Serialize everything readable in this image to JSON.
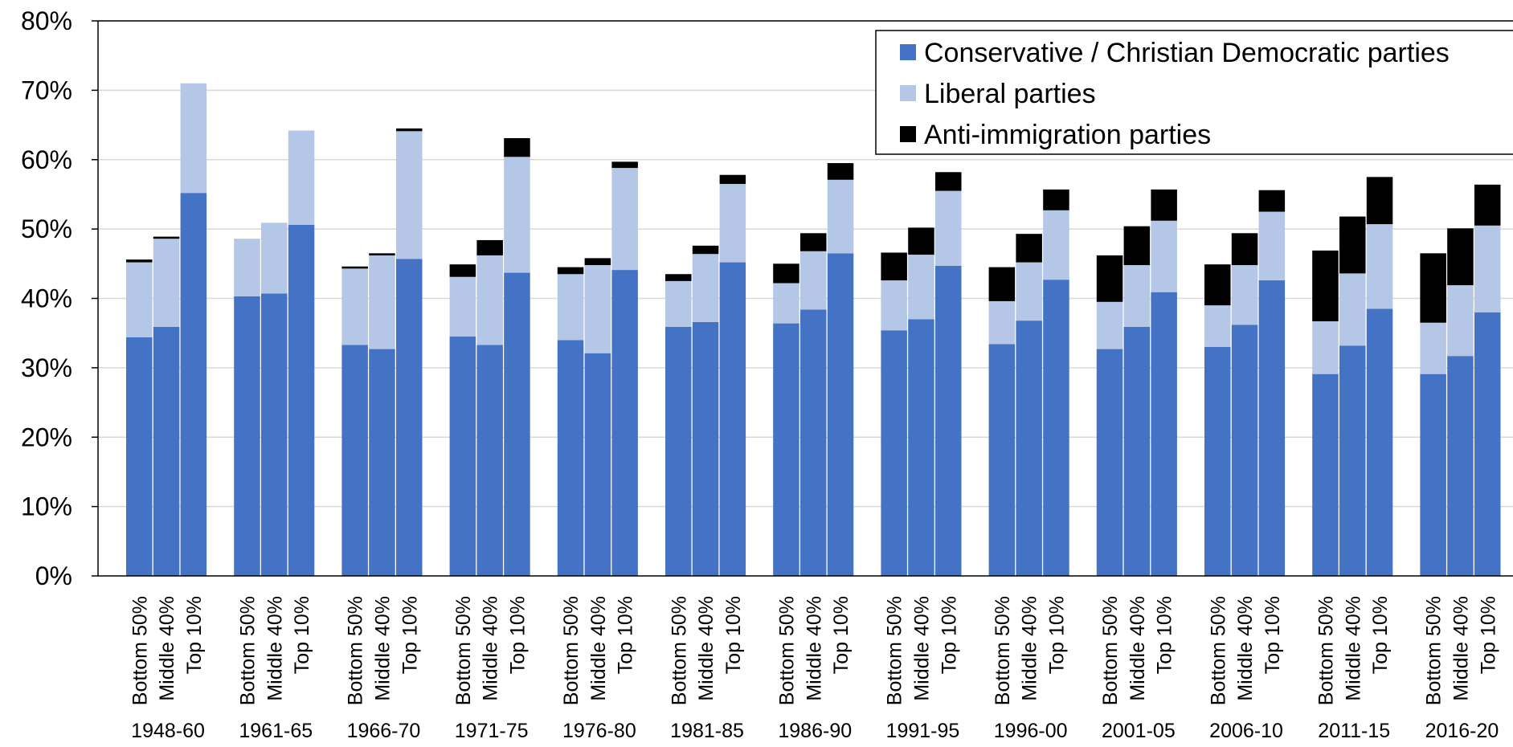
{
  "chart_data": {
    "type": "bar",
    "stacked": true,
    "grid": true,
    "legend_position": "top-right",
    "ylim": [
      0,
      80
    ],
    "yticks": [
      "0%",
      "10%",
      "20%",
      "30%",
      "40%",
      "50%",
      "60%",
      "70%",
      "80%"
    ],
    "periods": [
      "1948-60",
      "1961-65",
      "1966-70",
      "1971-75",
      "1976-80",
      "1981-85",
      "1986-90",
      "1991-95",
      "1996-00",
      "2001-05",
      "2006-10",
      "2011-15",
      "2016-20"
    ],
    "groups": [
      "Bottom 50%",
      "Middle 40%",
      "Top 10%"
    ],
    "series": [
      {
        "name": "Conservative / Christian Democratic parties",
        "color": "#4472c4",
        "values": [
          [
            34.4,
            35.9,
            55.2
          ],
          [
            40.3,
            40.7,
            50.6
          ],
          [
            33.3,
            32.7,
            45.7
          ],
          [
            34.5,
            33.3,
            43.7
          ],
          [
            34.0,
            32.1,
            44.1
          ],
          [
            35.9,
            36.6,
            45.2
          ],
          [
            36.4,
            38.4,
            46.5
          ],
          [
            35.4,
            37.0,
            44.7
          ],
          [
            33.4,
            36.8,
            42.7
          ],
          [
            32.7,
            35.9,
            40.9
          ],
          [
            33.0,
            36.2,
            42.6
          ],
          [
            29.1,
            33.2,
            38.5
          ],
          [
            29.1,
            31.7,
            38.0
          ]
        ]
      },
      {
        "name": "Liberal parties",
        "color": "#b4c7e7",
        "values": [
          [
            10.8,
            12.7,
            15.8
          ],
          [
            8.3,
            10.2,
            13.6
          ],
          [
            11.0,
            13.5,
            18.4
          ],
          [
            8.6,
            12.9,
            16.7
          ],
          [
            9.5,
            12.7,
            14.7
          ],
          [
            6.6,
            9.8,
            11.3
          ],
          [
            5.8,
            8.4,
            10.6
          ],
          [
            7.2,
            9.3,
            10.8
          ],
          [
            6.2,
            8.4,
            10.0
          ],
          [
            6.8,
            8.9,
            10.3
          ],
          [
            6.0,
            8.6,
            9.9
          ],
          [
            7.6,
            10.4,
            12.2
          ],
          [
            7.4,
            10.2,
            12.5
          ]
        ]
      },
      {
        "name": "Anti-immigration parties",
        "color": "#000000",
        "values": [
          [
            0.4,
            0.3,
            0.0
          ],
          [
            0.0,
            0.0,
            0.0
          ],
          [
            0.3,
            0.3,
            0.4
          ],
          [
            1.8,
            2.2,
            2.7
          ],
          [
            1.0,
            1.0,
            0.9
          ],
          [
            1.0,
            1.2,
            1.3
          ],
          [
            2.8,
            2.6,
            2.4
          ],
          [
            4.0,
            3.9,
            2.7
          ],
          [
            4.9,
            4.1,
            3.0
          ],
          [
            6.7,
            5.6,
            4.5
          ],
          [
            5.9,
            4.6,
            3.1
          ],
          [
            10.2,
            8.2,
            6.8
          ],
          [
            10.0,
            8.2,
            5.9
          ]
        ]
      }
    ]
  }
}
